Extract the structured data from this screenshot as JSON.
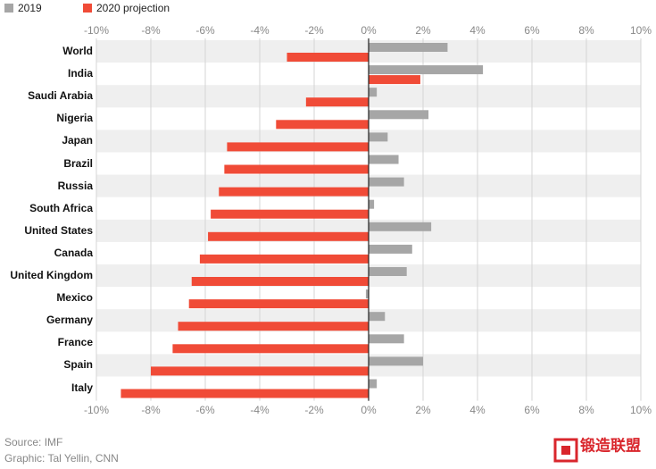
{
  "chart_data": {
    "type": "hbar",
    "categories": [
      "World",
      "India",
      "Saudi Arabia",
      "Nigeria",
      "Japan",
      "Brazil",
      "Russia",
      "South Africa",
      "United States",
      "Canada",
      "United Kingdom",
      "Mexico",
      "Germany",
      "France",
      "Spain",
      "Italy"
    ],
    "series": [
      {
        "name": "2019",
        "color": "#a6a6a6",
        "values": [
          2.9,
          4.2,
          0.3,
          2.2,
          0.7,
          1.1,
          1.3,
          0.2,
          2.3,
          1.6,
          1.4,
          -0.1,
          0.6,
          1.3,
          2.0,
          0.3
        ]
      },
      {
        "name": "2020 projection",
        "color": "#f04b37",
        "values": [
          -3.0,
          1.9,
          -2.3,
          -3.4,
          -5.2,
          -5.3,
          -5.5,
          -5.8,
          -5.9,
          -6.2,
          -6.5,
          -6.6,
          -7.0,
          -7.2,
          -8.0,
          -9.1
        ]
      }
    ],
    "xlim": [
      -10,
      10
    ],
    "xticks": [
      {
        "value": -10,
        "label": "-10%"
      },
      {
        "value": -8,
        "label": "-8%"
      },
      {
        "value": -6,
        "label": "-6%"
      },
      {
        "value": -4,
        "label": "-4%"
      },
      {
        "value": -2,
        "label": "-2%"
      },
      {
        "value": 0,
        "label": "0%"
      },
      {
        "value": 2,
        "label": "2%"
      },
      {
        "value": 4,
        "label": "4%"
      },
      {
        "value": 6,
        "label": "6%"
      },
      {
        "value": 8,
        "label": "8%"
      },
      {
        "value": 10,
        "label": "10%"
      }
    ],
    "grid": true,
    "source": "Source: IMF",
    "credit": "Graphic: Tal Yellin, CNN",
    "logo": "锻造联盟"
  }
}
